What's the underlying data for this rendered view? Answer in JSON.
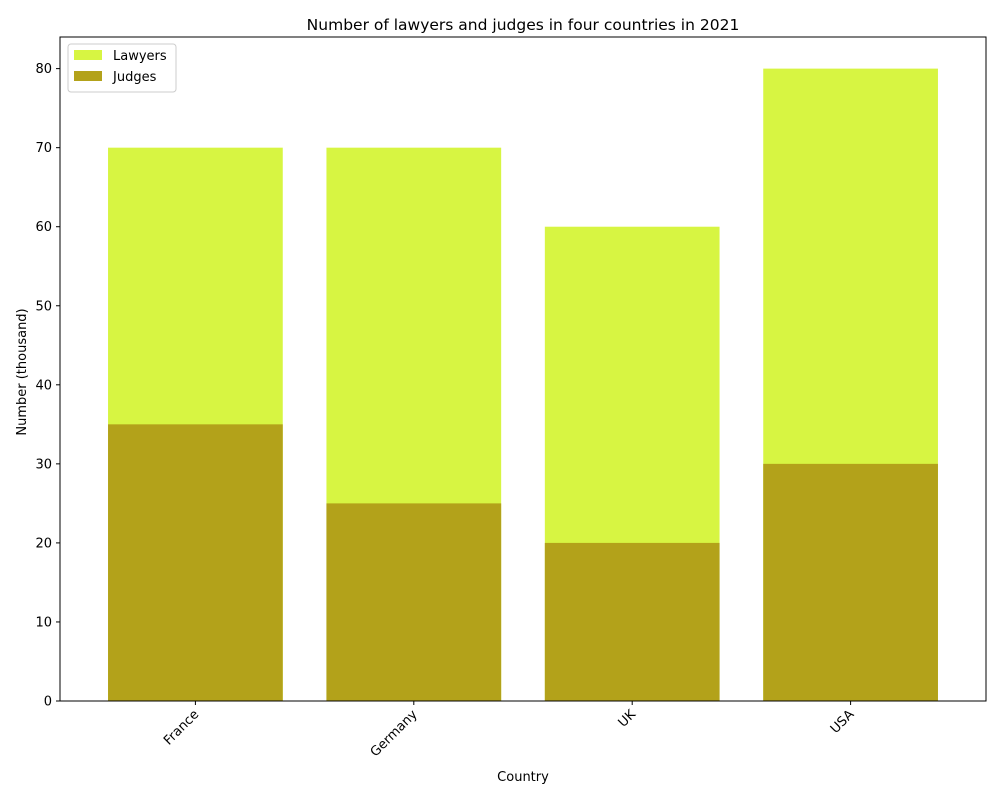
{
  "chart_data": {
    "type": "bar",
    "title": "Number of lawyers and judges in four countries in 2021",
    "xlabel": "Country",
    "ylabel": "Number (thousand)",
    "categories": [
      "France",
      "Germany",
      "UK",
      "USA"
    ],
    "series": [
      {
        "name": "Lawyers",
        "values": [
          70,
          70,
          60,
          80
        ],
        "color": "#d7f542"
      },
      {
        "name": "Judges",
        "values": [
          35,
          25,
          20,
          30
        ],
        "color": "#b3a21a"
      }
    ],
    "ylim": [
      0,
      84
    ],
    "yticks": [
      0,
      10,
      20,
      30,
      40,
      50,
      60,
      70,
      80
    ],
    "overlay": true,
    "grid": false,
    "legend_position": "top-left",
    "x_tick_rotation": 45
  }
}
